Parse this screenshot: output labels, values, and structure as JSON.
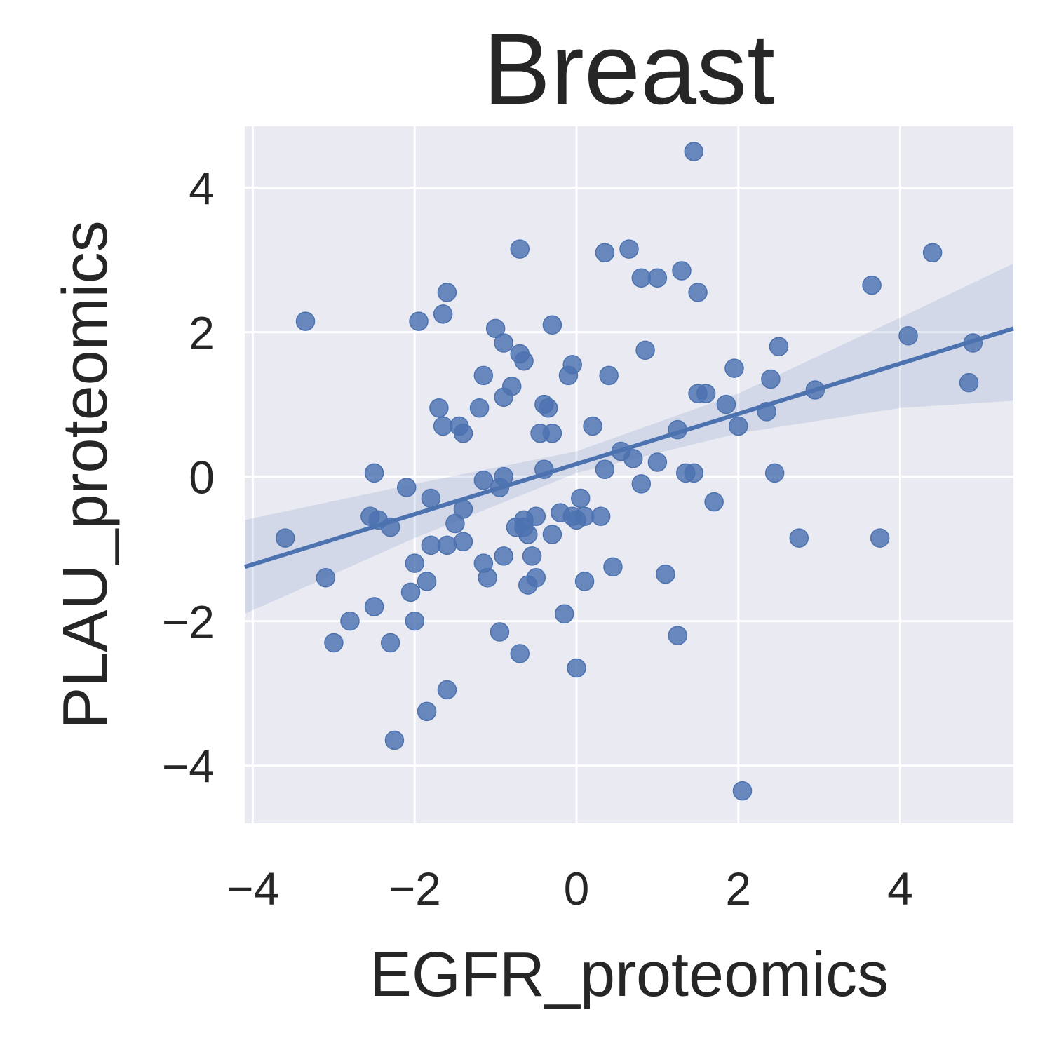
{
  "chart_data": {
    "type": "scatter",
    "title": "Breast",
    "xlabel": "EGFR_proteomics",
    "ylabel": "PLAU_proteomics",
    "xlim": [
      -4.1,
      5.4
    ],
    "ylim": [
      -4.8,
      4.85
    ],
    "xticks": [
      -4,
      -2,
      0,
      2,
      4
    ],
    "xtick_labels": [
      "−4",
      "−2",
      "0",
      "2",
      "4"
    ],
    "yticks": [
      -4,
      -2,
      0,
      2,
      4
    ],
    "ytick_labels": [
      "−4",
      "−2",
      "0",
      "2",
      "4"
    ],
    "grid": true,
    "legend": "none",
    "colors": {
      "background": "#eaeaf2",
      "grid": "#ffffff",
      "points": "#4c72b0",
      "line": "#4c72b0",
      "band": "#4c72b0"
    },
    "points": [
      {
        "x": -3.6,
        "y": -0.85
      },
      {
        "x": -3.35,
        "y": 2.15
      },
      {
        "x": -3.1,
        "y": -1.4
      },
      {
        "x": -3.0,
        "y": -2.3
      },
      {
        "x": -2.8,
        "y": -2.0
      },
      {
        "x": -2.55,
        "y": -0.55
      },
      {
        "x": -2.5,
        "y": 0.05
      },
      {
        "x": -2.45,
        "y": -0.6
      },
      {
        "x": -2.5,
        "y": -1.8
      },
      {
        "x": -2.3,
        "y": -0.7
      },
      {
        "x": -2.3,
        "y": -2.3
      },
      {
        "x": -2.25,
        "y": -3.65
      },
      {
        "x": -2.1,
        "y": -0.15
      },
      {
        "x": -2.0,
        "y": -1.2
      },
      {
        "x": -2.0,
        "y": -2.0
      },
      {
        "x": -2.05,
        "y": -1.6
      },
      {
        "x": -1.95,
        "y": 2.15
      },
      {
        "x": -1.85,
        "y": -1.45
      },
      {
        "x": -1.8,
        "y": -0.95
      },
      {
        "x": -1.8,
        "y": -0.3
      },
      {
        "x": -1.85,
        "y": -3.25
      },
      {
        "x": -1.7,
        "y": 0.95
      },
      {
        "x": -1.65,
        "y": 2.25
      },
      {
        "x": -1.65,
        "y": 0.7
      },
      {
        "x": -1.6,
        "y": 2.55
      },
      {
        "x": -1.6,
        "y": -0.95
      },
      {
        "x": -1.6,
        "y": -2.95
      },
      {
        "x": -1.5,
        "y": -0.65
      },
      {
        "x": -1.45,
        "y": 0.7
      },
      {
        "x": -1.4,
        "y": 0.6
      },
      {
        "x": -1.4,
        "y": -0.45
      },
      {
        "x": -1.4,
        "y": -0.9
      },
      {
        "x": -1.2,
        "y": 0.95
      },
      {
        "x": -1.15,
        "y": -0.05
      },
      {
        "x": -1.15,
        "y": -1.2
      },
      {
        "x": -1.15,
        "y": 1.4
      },
      {
        "x": -1.1,
        "y": -1.4
      },
      {
        "x": -1.0,
        "y": 2.05
      },
      {
        "x": -0.95,
        "y": -0.15
      },
      {
        "x": -0.95,
        "y": -2.15
      },
      {
        "x": -0.9,
        "y": 1.85
      },
      {
        "x": -0.9,
        "y": 1.1
      },
      {
        "x": -0.9,
        "y": 0.0
      },
      {
        "x": -0.9,
        "y": -1.1
      },
      {
        "x": -0.8,
        "y": 1.25
      },
      {
        "x": -0.75,
        "y": -0.7
      },
      {
        "x": -0.7,
        "y": 3.15
      },
      {
        "x": -0.7,
        "y": 1.7
      },
      {
        "x": -0.7,
        "y": -2.45
      },
      {
        "x": -0.65,
        "y": 1.6
      },
      {
        "x": -0.65,
        "y": -0.6
      },
      {
        "x": -0.65,
        "y": -0.7
      },
      {
        "x": -0.6,
        "y": -0.8
      },
      {
        "x": -0.6,
        "y": -1.5
      },
      {
        "x": -0.55,
        "y": -1.1
      },
      {
        "x": -0.5,
        "y": -0.55
      },
      {
        "x": -0.5,
        "y": -1.4
      },
      {
        "x": -0.45,
        "y": 0.6
      },
      {
        "x": -0.4,
        "y": 1.0
      },
      {
        "x": -0.4,
        "y": 0.1
      },
      {
        "x": -0.35,
        "y": 0.95
      },
      {
        "x": -0.3,
        "y": 2.1
      },
      {
        "x": -0.3,
        "y": 0.6
      },
      {
        "x": -0.3,
        "y": -0.8
      },
      {
        "x": -0.2,
        "y": -0.5
      },
      {
        "x": -0.15,
        "y": -1.9
      },
      {
        "x": -0.1,
        "y": 1.4
      },
      {
        "x": -0.05,
        "y": 1.55
      },
      {
        "x": -0.05,
        "y": -0.55
      },
      {
        "x": 0.0,
        "y": -0.6
      },
      {
        "x": 0.0,
        "y": -2.65
      },
      {
        "x": 0.05,
        "y": -0.3
      },
      {
        "x": 0.1,
        "y": -0.55
      },
      {
        "x": 0.1,
        "y": -1.45
      },
      {
        "x": 0.2,
        "y": 0.7
      },
      {
        "x": 0.3,
        "y": -0.55
      },
      {
        "x": 0.35,
        "y": 3.1
      },
      {
        "x": 0.35,
        "y": 0.1
      },
      {
        "x": 0.4,
        "y": 1.4
      },
      {
        "x": 0.45,
        "y": -1.25
      },
      {
        "x": 0.55,
        "y": 0.35
      },
      {
        "x": 0.65,
        "y": 3.15
      },
      {
        "x": 0.7,
        "y": 0.25
      },
      {
        "x": 0.8,
        "y": 2.75
      },
      {
        "x": 0.8,
        "y": -0.1
      },
      {
        "x": 0.85,
        "y": 1.75
      },
      {
        "x": 1.0,
        "y": 0.2
      },
      {
        "x": 1.0,
        "y": 2.75
      },
      {
        "x": 1.1,
        "y": -1.35
      },
      {
        "x": 1.25,
        "y": -2.2
      },
      {
        "x": 1.25,
        "y": 0.65
      },
      {
        "x": 1.3,
        "y": 2.85
      },
      {
        "x": 1.35,
        "y": 0.05
      },
      {
        "x": 1.45,
        "y": 4.5
      },
      {
        "x": 1.45,
        "y": 0.05
      },
      {
        "x": 1.5,
        "y": 1.15
      },
      {
        "x": 1.5,
        "y": 2.55
      },
      {
        "x": 1.6,
        "y": 1.15
      },
      {
        "x": 1.7,
        "y": -0.35
      },
      {
        "x": 1.85,
        "y": 1.0
      },
      {
        "x": 1.95,
        "y": 1.5
      },
      {
        "x": 2.0,
        "y": 0.7
      },
      {
        "x": 2.05,
        "y": -4.35
      },
      {
        "x": 2.35,
        "y": 0.9
      },
      {
        "x": 2.4,
        "y": 1.35
      },
      {
        "x": 2.45,
        "y": 0.05
      },
      {
        "x": 2.5,
        "y": 1.8
      },
      {
        "x": 2.75,
        "y": -0.85
      },
      {
        "x": 2.95,
        "y": 1.2
      },
      {
        "x": 3.65,
        "y": 2.65
      },
      {
        "x": 3.75,
        "y": -0.85
      },
      {
        "x": 4.1,
        "y": 1.95
      },
      {
        "x": 4.4,
        "y": 3.1
      },
      {
        "x": 4.85,
        "y": 1.3
      },
      {
        "x": 4.9,
        "y": 1.85
      }
    ],
    "regression": {
      "x": [
        -4.1,
        5.4
      ],
      "y": [
        -1.25,
        2.05
      ]
    },
    "ci_band": {
      "x": [
        -4.1,
        -2.0,
        0.0,
        2.0,
        4.0,
        5.4
      ],
      "upper": [
        -0.6,
        -0.1,
        0.35,
        1.15,
        2.2,
        2.95
      ],
      "lower": [
        -1.9,
        -0.85,
        0.05,
        0.6,
        0.95,
        1.05
      ]
    }
  }
}
